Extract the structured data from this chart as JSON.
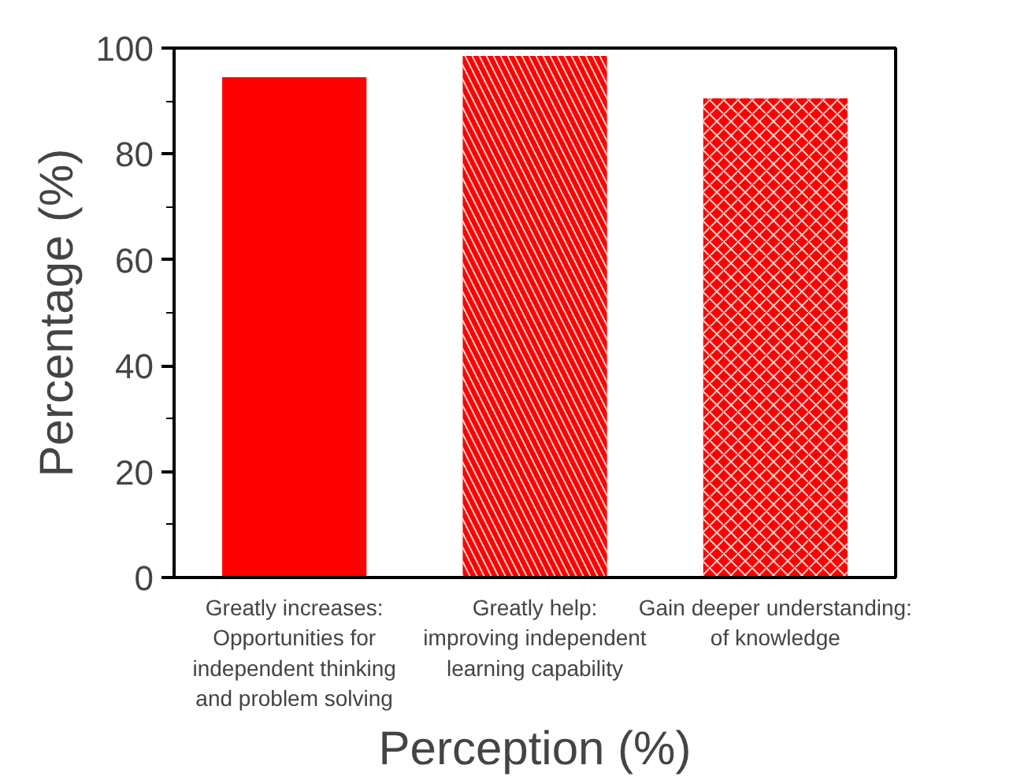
{
  "chart_data": {
    "type": "bar",
    "xlabel": "Perception (%)",
    "ylabel": "Percentage (%)",
    "categories": [
      "Greatly increases:\nOpportunities for\nindependent thinking\nand problem solving",
      "Greatly help:\nimproving independent\nlearning capability",
      "Gain deeper understanding:\nof knowledge"
    ],
    "values": [
      94.5,
      98.5,
      90.5
    ],
    "colors": [
      "#ff0000",
      "#ff0000",
      "#ff0000"
    ],
    "ylim": [
      0,
      100
    ],
    "yticks": [
      0,
      20,
      40,
      60,
      80,
      100
    ],
    "grid": false
  }
}
